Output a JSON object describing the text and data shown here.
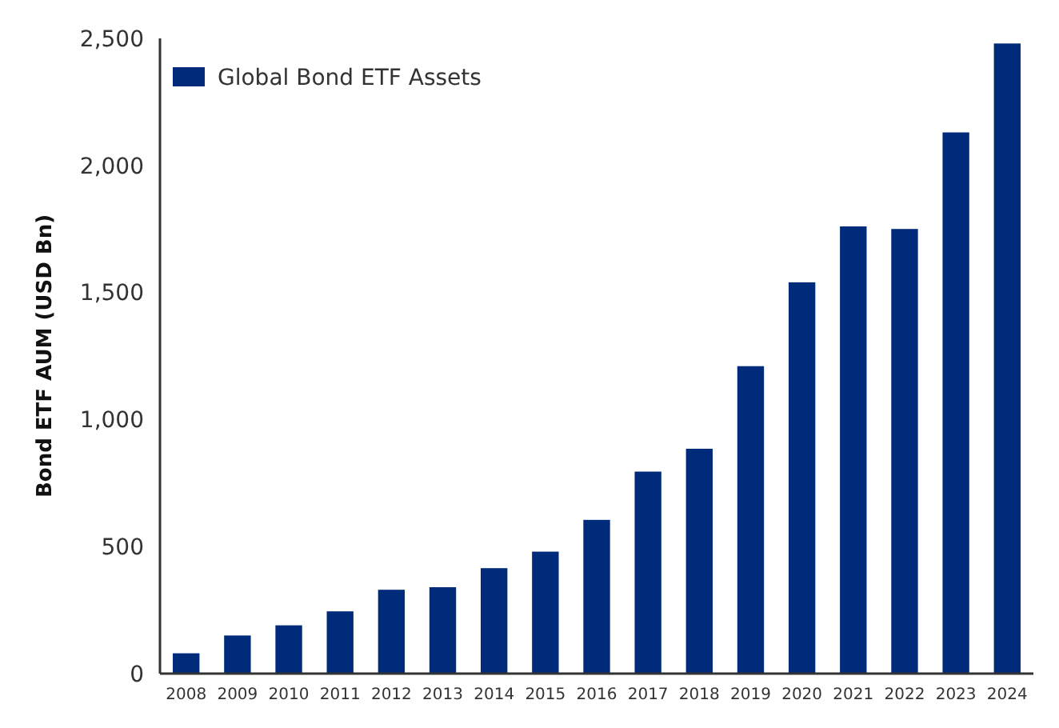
{
  "chart_data": {
    "type": "bar",
    "ylabel": "Bond ETF AUM (USD Bn)",
    "categories": [
      "2008",
      "2009",
      "2010",
      "2011",
      "2012",
      "2013",
      "2014",
      "2015",
      "2016",
      "2017",
      "2018",
      "2019",
      "2020",
      "2021",
      "2022",
      "2023",
      "2024"
    ],
    "series": [
      {
        "name": "Global Bond ETF Assets",
        "color": "#002b7a",
        "values": [
          80,
          150,
          190,
          245,
          330,
          340,
          415,
          480,
          605,
          795,
          885,
          1210,
          1540,
          1760,
          1750,
          2130,
          2480
        ]
      }
    ],
    "ylim": [
      0,
      2500
    ],
    "yticks": [
      {
        "value": 0,
        "label": "0"
      },
      {
        "value": 500,
        "label": "500"
      },
      {
        "value": 1000,
        "label": "1,000"
      },
      {
        "value": 1500,
        "label": "1,500"
      },
      {
        "value": 2000,
        "label": "2,000"
      },
      {
        "value": 2500,
        "label": "2,500"
      }
    ],
    "grid": false,
    "legend": "top left"
  }
}
